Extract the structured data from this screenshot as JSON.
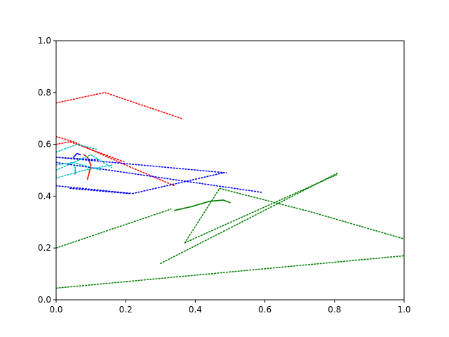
{
  "chart_data": {
    "type": "line",
    "title": "",
    "xlabel": "",
    "ylabel": "",
    "xlim": [
      0,
      1
    ],
    "ylim": [
      0,
      1
    ],
    "xticks": [
      "0.0",
      "0.2",
      "0.4",
      "0.6",
      "0.8",
      "1.0"
    ],
    "yticks": [
      "0.0",
      "0.2",
      "0.4",
      "0.6",
      "0.8",
      "1.0"
    ],
    "grid": false,
    "legend": "none",
    "colors": {
      "red": "#ff0000",
      "blue": "#0000ff",
      "cyan": "#00bfbf",
      "green": "#008000"
    },
    "series": [
      {
        "color": "red",
        "style": "dotted",
        "x": [
          0.0,
          0.14,
          0.36
        ],
        "y": [
          0.76,
          0.8,
          0.7
        ]
      },
      {
        "color": "red",
        "style": "dotted",
        "x": [
          0.0,
          0.05,
          0.2,
          0.34
        ],
        "y": [
          0.63,
          0.61,
          0.52,
          0.44
        ]
      },
      {
        "color": "red",
        "style": "dotted",
        "x": [
          0.0,
          0.04,
          0.2
        ],
        "y": [
          0.6,
          0.61,
          0.53
        ]
      },
      {
        "color": "red",
        "style": "solid",
        "x": [
          0.08,
          0.09,
          0.1,
          0.095,
          0.09
        ],
        "y": [
          0.56,
          0.55,
          0.52,
          0.49,
          0.465
        ]
      },
      {
        "color": "blue",
        "style": "dotted",
        "x": [
          0.0,
          0.49
        ],
        "y": [
          0.55,
          0.49
        ]
      },
      {
        "color": "blue",
        "style": "dotted",
        "x": [
          0.0,
          0.59
        ],
        "y": [
          0.53,
          0.415
        ]
      },
      {
        "color": "blue",
        "style": "dotted",
        "x": [
          0.0,
          0.22,
          0.48
        ],
        "y": [
          0.44,
          0.41,
          0.49
        ]
      },
      {
        "color": "blue",
        "style": "dotted",
        "x": [
          0.04,
          0.21
        ],
        "y": [
          0.43,
          0.41
        ]
      },
      {
        "color": "blue",
        "style": "dotted",
        "x": [
          0.0,
          0.12
        ],
        "y": [
          0.55,
          0.54
        ]
      },
      {
        "color": "blue",
        "style": "solid",
        "x": [
          0.05,
          0.06,
          0.07
        ],
        "y": [
          0.55,
          0.565,
          0.56
        ]
      },
      {
        "color": "cyan",
        "style": "dotted",
        "x": [
          0.0,
          0.06,
          0.12
        ],
        "y": [
          0.57,
          0.6,
          0.58
        ]
      },
      {
        "color": "cyan",
        "style": "dotted",
        "x": [
          0.0,
          0.08,
          0.16
        ],
        "y": [
          0.47,
          0.5,
          0.52
        ]
      },
      {
        "color": "cyan",
        "style": "dotted",
        "x": [
          0.0,
          0.1,
          0.16
        ],
        "y": [
          0.5,
          0.56,
          0.51
        ]
      },
      {
        "color": "cyan",
        "style": "dotted",
        "x": [
          0.0,
          0.05,
          0.13
        ],
        "y": [
          0.52,
          0.53,
          0.5
        ]
      },
      {
        "color": "cyan",
        "style": "solid",
        "x": [
          0.05,
          0.055,
          0.055
        ],
        "y": [
          0.52,
          0.51,
          0.485
        ]
      },
      {
        "color": "green",
        "style": "dotted",
        "x": [
          0.0,
          0.33
        ],
        "y": [
          0.2,
          0.35
        ]
      },
      {
        "color": "green",
        "style": "dotted",
        "x": [
          0.47,
          0.73,
          1.0
        ],
        "y": [
          0.43,
          0.34,
          0.235
        ]
      },
      {
        "color": "green",
        "style": "dotted",
        "x": [
          0.0,
          1.0
        ],
        "y": [
          0.045,
          0.17
        ]
      },
      {
        "color": "green",
        "style": "dotted",
        "x": [
          0.3,
          0.81
        ],
        "y": [
          0.14,
          0.49
        ]
      },
      {
        "color": "green",
        "style": "dotted",
        "x": [
          0.37,
          0.81
        ],
        "y": [
          0.22,
          0.485
        ]
      },
      {
        "color": "green",
        "style": "dotted",
        "x": [
          0.37,
          0.47
        ],
        "y": [
          0.22,
          0.43
        ]
      },
      {
        "color": "green",
        "style": "solid",
        "x": [
          0.34,
          0.39,
          0.44,
          0.48,
          0.5
        ],
        "y": [
          0.345,
          0.36,
          0.38,
          0.385,
          0.375
        ]
      }
    ]
  }
}
